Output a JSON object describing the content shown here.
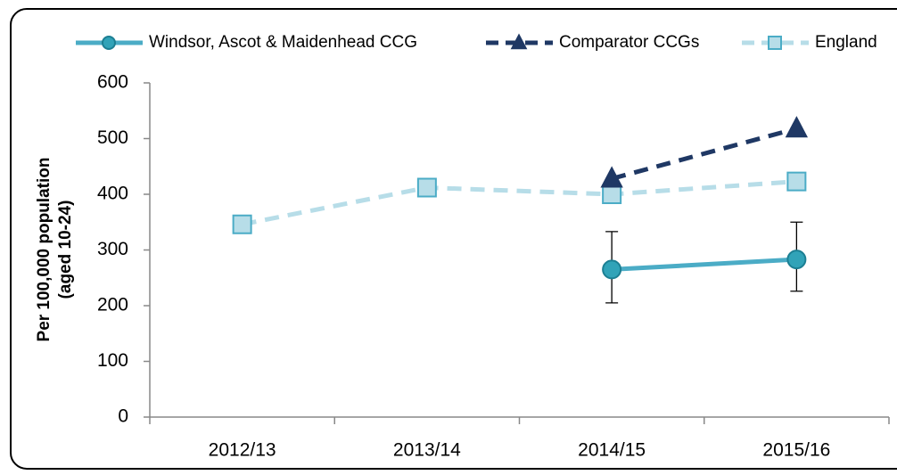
{
  "chart_data": {
    "type": "line",
    "ylabel": [
      "Per 100,000 population",
      "(aged 10-24)"
    ],
    "categories": [
      "2012/13",
      "2013/14",
      "2014/15",
      "2015/16"
    ],
    "series": [
      {
        "name": "Windsor, Ascot & Maidenhead CCG",
        "color": "#4bacc6",
        "marker": "circle",
        "dash": false,
        "values": [
          null,
          null,
          265,
          283
        ],
        "lower": [
          null,
          null,
          205,
          226
        ],
        "upper": [
          null,
          null,
          333,
          350
        ]
      },
      {
        "name": "Comparator CCGs",
        "color": "#1f3864",
        "marker": "triangle",
        "dash": true,
        "values": [
          null,
          null,
          428,
          518
        ]
      },
      {
        "name": "England",
        "color": "#b7dde8",
        "marker": "square",
        "dash": true,
        "values": [
          346,
          412,
          400,
          423
        ]
      }
    ],
    "ylim": [
      0,
      600
    ],
    "yticks": [
      0,
      100,
      200,
      300,
      400,
      500,
      600
    ],
    "grid": false,
    "legend": "top"
  }
}
